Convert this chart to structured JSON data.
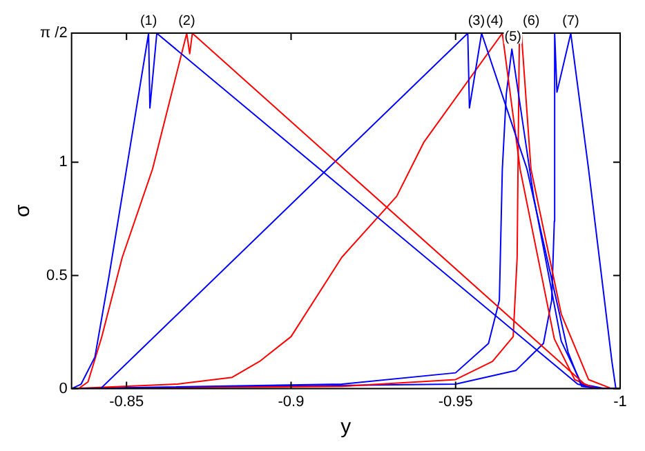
{
  "chart_data": {
    "type": "line",
    "xlabel": "y",
    "ylabel": "σ",
    "xlim": [
      -0.8333,
      -1
    ],
    "ylim": [
      0,
      1.5708
    ],
    "xticks": [
      -0.85,
      -0.9,
      -0.95,
      -1
    ],
    "yticks": [
      0,
      0.5,
      1,
      {
        "value": 1.5708,
        "label": "π /2"
      }
    ],
    "grid": false,
    "legend": false,
    "marker": "none",
    "line_style": "solid",
    "series": [
      {
        "color": "#0000ff",
        "x": [
          -0.8333,
          -0.8362,
          -0.8404,
          -0.8446,
          -0.85,
          -0.8567,
          -0.8571,
          -0.8592,
          -0.9871,
          -0.9925,
          -1
        ],
        "values": [
          0,
          0.02,
          0.14,
          0.49,
          0.97,
          1.57,
          1.24,
          1.57,
          0.02,
          0,
          0
        ]
      },
      {
        "color": "#ff0000",
        "x": [
          -0.8333,
          -0.8354,
          -0.8383,
          -0.8425,
          -0.8487,
          -0.8579,
          -0.8683,
          -0.8692,
          -0.87,
          -0.9892,
          -0.9925,
          -1
        ],
        "values": [
          0,
          0,
          0.03,
          0.23,
          0.58,
          0.97,
          1.57,
          1.48,
          1.57,
          0.02,
          0,
          0
        ]
      },
      {
        "color": "#0000ff",
        "x": [
          -0.8333,
          -0.8421,
          -0.9537,
          -0.9542,
          -0.9579,
          -0.9717,
          -0.9842,
          -0.9883,
          -0.9946,
          -1
        ],
        "values": [
          0,
          0,
          1.57,
          1.24,
          1.57,
          0.97,
          0.16,
          0.01,
          0,
          0
        ]
      },
      {
        "color": "#ff0000",
        "x": [
          -0.8333,
          -0.8654,
          -0.8821,
          -0.8904,
          -0.9,
          -0.9154,
          -0.9321,
          -0.9404,
          -0.9642,
          -0.9696,
          -0.98,
          -0.9862,
          -0.9925,
          -1
        ],
        "values": [
          0,
          0.02,
          0.05,
          0.12,
          0.23,
          0.58,
          0.85,
          1.09,
          1.57,
          0.97,
          0.22,
          0.04,
          0,
          0
        ]
      },
      {
        "color": "#0000ff",
        "x": [
          -0.8333,
          -0.9154,
          -0.95,
          -0.96,
          -0.9633,
          -0.9642,
          -0.9654,
          -0.9671,
          -0.9737,
          -0.9821,
          -0.9883,
          -0.9954,
          -1
        ],
        "values": [
          0,
          0.02,
          0.07,
          0.2,
          0.39,
          0.97,
          1.3,
          1.5,
          0.85,
          0.21,
          0.02,
          0,
          0
        ]
      },
      {
        "color": "#ff0000",
        "x": [
          -0.8333,
          -0.9154,
          -0.95,
          -0.9612,
          -0.9675,
          -0.9687,
          -0.9692,
          -0.9694,
          -0.97,
          -0.9729,
          -0.9821,
          -0.9904,
          -0.9975,
          -1
        ],
        "values": [
          0,
          0.01,
          0.04,
          0.12,
          0.23,
          0.58,
          1.32,
          1.57,
          1.57,
          0.97,
          0.33,
          0.04,
          0,
          0
        ]
      },
      {
        "color": "#0000ff",
        "x": [
          -0.8333,
          -0.95,
          -0.9683,
          -0.9767,
          -0.9792,
          -0.98,
          -0.9801,
          -0.9808,
          -0.985,
          -0.9904,
          -0.9975,
          -0.9987,
          -1
        ],
        "values": [
          0,
          0.02,
          0.08,
          0.2,
          0.39,
          0.74,
          1.57,
          1.31,
          1.57,
          0.97,
          0.12,
          0,
          0
        ]
      }
    ],
    "annotations": [
      {
        "text": "(1)",
        "x": -0.8567,
        "y": 1.57
      },
      {
        "text": "(2)",
        "x": -0.8683,
        "y": 1.57
      },
      {
        "text": "(3)",
        "x": -0.9579,
        "y": 1.57
      },
      {
        "text": "(4)",
        "x": -0.9642,
        "y": 1.57
      },
      {
        "text": "(5)",
        "x": -0.9671,
        "y": 1.5
      },
      {
        "text": "(6)",
        "x": -0.9694,
        "y": 1.57
      },
      {
        "text": "(7)",
        "x": -0.985,
        "y": 1.57
      }
    ]
  }
}
